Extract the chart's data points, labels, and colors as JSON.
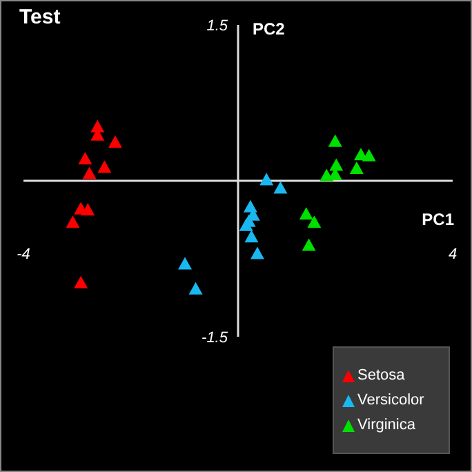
{
  "chart_data": {
    "type": "scatter",
    "title": "Test",
    "xlabel": "PC1",
    "ylabel": "PC2",
    "xlim": [
      -4,
      4
    ],
    "ylim": [
      -1.5,
      1.5
    ],
    "xticks": [
      -4,
      4
    ],
    "yticks": [
      -1.5,
      1.5
    ],
    "grid": false,
    "legend": "bottom right",
    "marker": "triangle",
    "series": [
      {
        "name": "Setosa",
        "color": "#ff0000",
        "x": [
          -2.62,
          -2.62,
          -2.29,
          -2.85,
          -2.49,
          -2.77,
          -2.93,
          -2.8,
          -3.08,
          -2.93
        ],
        "values": [
          0.52,
          0.44,
          0.37,
          0.21,
          0.13,
          0.07,
          -0.27,
          -0.28,
          -0.4,
          -0.98
        ]
      },
      {
        "name": "Versicolor",
        "color": "#1ab8f0",
        "x": [
          0.53,
          0.79,
          0.23,
          0.28,
          0.2,
          0.15,
          0.25,
          0.36,
          -0.99,
          -0.79
        ],
        "values": [
          0.01,
          -0.07,
          -0.25,
          -0.33,
          -0.39,
          -0.43,
          -0.54,
          -0.7,
          -0.8,
          -1.04
        ]
      },
      {
        "name": "Virginica",
        "color": "#00e000",
        "x": [
          1.81,
          2.29,
          2.44,
          1.83,
          2.21,
          1.65,
          1.81,
          1.27,
          1.42,
          1.32
        ],
        "values": [
          0.38,
          0.25,
          0.24,
          0.15,
          0.12,
          0.05,
          0.06,
          -0.32,
          -0.4,
          -0.62
        ]
      }
    ]
  }
}
